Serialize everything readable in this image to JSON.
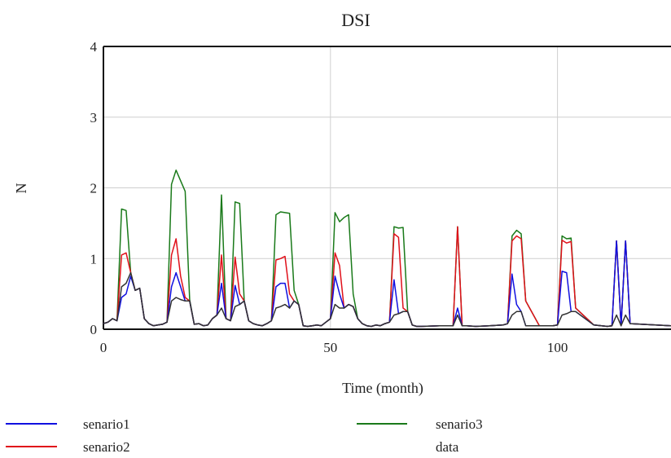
{
  "chart_data": {
    "type": "line",
    "title": "DSI",
    "xlabel": "Time (month)",
    "ylabel": "N",
    "xlim": [
      0,
      125
    ],
    "ylim": [
      0,
      4
    ],
    "x_ticks": [
      0,
      50,
      100
    ],
    "y_ticks": [
      0,
      1,
      2,
      3,
      4
    ],
    "x_tick_labels": [
      "0",
      "50",
      "100"
    ],
    "y_tick_labels": [
      "0",
      "1",
      "2",
      "3",
      "4"
    ],
    "grid": true,
    "legend_position": "bottom",
    "series": [
      {
        "name": "senario3",
        "color": "#1a7a1a",
        "x": [
          0,
          1,
          2,
          3,
          4,
          5,
          6,
          7,
          8,
          9,
          10,
          11,
          12,
          13,
          14,
          15,
          16,
          17,
          18,
          19,
          20,
          21,
          22,
          23,
          24,
          25,
          26,
          27,
          28,
          29,
          30,
          31,
          32,
          33,
          34,
          35,
          36,
          37,
          38,
          39,
          40,
          41,
          42,
          43,
          44,
          45,
          46,
          47,
          48,
          49,
          50,
          51,
          52,
          53,
          54,
          55,
          56,
          57,
          58,
          59,
          60,
          61,
          62,
          63,
          64,
          65,
          66,
          67,
          68,
          69,
          70,
          74,
          76,
          77,
          78,
          79,
          80,
          82,
          85,
          88,
          89,
          90,
          91,
          92,
          93,
          96,
          99,
          100,
          101,
          102,
          103,
          104,
          108,
          111,
          112,
          113,
          114,
          115,
          116,
          125
        ],
        "y": [
          0.08,
          0.1,
          0.15,
          0.12,
          1.7,
          1.68,
          0.8,
          0.55,
          0.58,
          0.15,
          0.08,
          0.05,
          0.06,
          0.07,
          0.1,
          2.05,
          2.25,
          2.1,
          1.95,
          0.42,
          0.07,
          0.08,
          0.05,
          0.06,
          0.15,
          0.2,
          1.9,
          0.15,
          0.12,
          1.8,
          1.78,
          0.4,
          0.12,
          0.08,
          0.06,
          0.05,
          0.08,
          0.12,
          1.62,
          1.66,
          1.65,
          1.64,
          0.55,
          0.35,
          0.05,
          0.04,
          0.05,
          0.06,
          0.05,
          0.1,
          0.15,
          1.65,
          1.52,
          1.58,
          1.62,
          0.5,
          0.15,
          0.08,
          0.05,
          0.04,
          0.06,
          0.05,
          0.08,
          0.1,
          1.45,
          1.43,
          1.44,
          0.25,
          0.06,
          0.04,
          0.04,
          0.05,
          0.05,
          0.05,
          1.45,
          0.05,
          0.05,
          0.04,
          0.05,
          0.06,
          0.08,
          1.32,
          1.4,
          1.35,
          0.4,
          0.05,
          0.05,
          0.06,
          1.32,
          1.28,
          1.29,
          0.3,
          0.06,
          0.04,
          0.05,
          1.25,
          0.05,
          1.25,
          0.08,
          0.05
        ]
      },
      {
        "name": "senario2",
        "color": "#e0101a",
        "x": [
          0,
          1,
          2,
          3,
          4,
          5,
          6,
          7,
          8,
          9,
          10,
          11,
          12,
          13,
          14,
          15,
          16,
          17,
          18,
          19,
          20,
          21,
          22,
          23,
          24,
          25,
          26,
          27,
          28,
          29,
          30,
          31,
          32,
          33,
          34,
          35,
          36,
          37,
          38,
          39,
          40,
          41,
          42,
          43,
          44,
          45,
          46,
          47,
          48,
          49,
          50,
          51,
          52,
          53,
          54,
          55,
          56,
          57,
          58,
          59,
          60,
          61,
          62,
          63,
          64,
          65,
          66,
          67,
          68,
          69,
          70,
          74,
          76,
          77,
          78,
          79,
          80,
          82,
          85,
          88,
          89,
          90,
          91,
          92,
          93,
          96,
          99,
          100,
          101,
          102,
          103,
          104,
          108,
          111,
          112,
          113,
          114,
          115,
          116,
          125
        ],
        "y": [
          0.08,
          0.1,
          0.15,
          0.12,
          1.05,
          1.08,
          0.8,
          0.55,
          0.58,
          0.15,
          0.08,
          0.05,
          0.06,
          0.07,
          0.1,
          1.05,
          1.28,
          0.75,
          0.45,
          0.4,
          0.07,
          0.08,
          0.05,
          0.06,
          0.15,
          0.2,
          1.05,
          0.15,
          0.12,
          1.02,
          0.5,
          0.4,
          0.12,
          0.08,
          0.06,
          0.05,
          0.08,
          0.12,
          0.98,
          1.0,
          1.03,
          0.5,
          0.4,
          0.35,
          0.05,
          0.04,
          0.05,
          0.06,
          0.05,
          0.1,
          0.15,
          1.08,
          0.9,
          0.3,
          0.35,
          0.32,
          0.15,
          0.08,
          0.05,
          0.04,
          0.06,
          0.05,
          0.08,
          0.1,
          1.35,
          1.3,
          0.3,
          0.25,
          0.06,
          0.04,
          0.04,
          0.05,
          0.05,
          0.05,
          1.45,
          0.05,
          0.05,
          0.04,
          0.05,
          0.06,
          0.08,
          1.25,
          1.32,
          1.28,
          0.4,
          0.05,
          0.05,
          0.06,
          1.26,
          1.22,
          1.24,
          0.3,
          0.06,
          0.04,
          0.05,
          1.25,
          0.05,
          1.25,
          0.08,
          0.05
        ]
      },
      {
        "name": "senario1",
        "color": "#1010e0",
        "x": [
          0,
          1,
          2,
          3,
          4,
          5,
          6,
          7,
          8,
          9,
          10,
          11,
          12,
          13,
          14,
          15,
          16,
          17,
          18,
          19,
          20,
          21,
          22,
          23,
          24,
          25,
          26,
          27,
          28,
          29,
          30,
          31,
          32,
          33,
          34,
          35,
          36,
          37,
          38,
          39,
          40,
          41,
          42,
          43,
          44,
          45,
          46,
          47,
          48,
          49,
          50,
          51,
          52,
          53,
          54,
          55,
          56,
          57,
          58,
          59,
          60,
          61,
          62,
          63,
          64,
          65,
          66,
          67,
          68,
          69,
          70,
          74,
          76,
          77,
          78,
          79,
          80,
          82,
          85,
          88,
          89,
          90,
          91,
          92,
          93,
          96,
          99,
          100,
          101,
          102,
          103,
          104,
          108,
          111,
          112,
          113,
          114,
          115,
          116,
          125
        ],
        "y": [
          0.08,
          0.1,
          0.15,
          0.12,
          0.45,
          0.5,
          0.75,
          0.55,
          0.58,
          0.15,
          0.08,
          0.05,
          0.06,
          0.07,
          0.1,
          0.6,
          0.8,
          0.6,
          0.4,
          0.4,
          0.07,
          0.08,
          0.05,
          0.06,
          0.15,
          0.2,
          0.65,
          0.15,
          0.12,
          0.62,
          0.35,
          0.4,
          0.12,
          0.08,
          0.06,
          0.05,
          0.08,
          0.12,
          0.6,
          0.65,
          0.65,
          0.3,
          0.4,
          0.35,
          0.05,
          0.04,
          0.05,
          0.06,
          0.05,
          0.1,
          0.15,
          0.75,
          0.5,
          0.3,
          0.35,
          0.32,
          0.15,
          0.08,
          0.05,
          0.04,
          0.06,
          0.05,
          0.08,
          0.1,
          0.7,
          0.22,
          0.25,
          0.25,
          0.06,
          0.04,
          0.04,
          0.05,
          0.05,
          0.05,
          0.3,
          0.05,
          0.05,
          0.04,
          0.05,
          0.06,
          0.08,
          0.78,
          0.35,
          0.25,
          0.05,
          0.05,
          0.05,
          0.06,
          0.82,
          0.8,
          0.25,
          0.25,
          0.06,
          0.04,
          0.05,
          1.25,
          0.05,
          1.25,
          0.08,
          0.05
        ]
      },
      {
        "name": "data",
        "color": "#333333",
        "x": [
          0,
          1,
          2,
          3,
          4,
          5,
          6,
          7,
          8,
          9,
          10,
          11,
          12,
          13,
          14,
          15,
          16,
          17,
          18,
          19,
          20,
          21,
          22,
          23,
          24,
          25,
          26,
          27,
          28,
          29,
          30,
          31,
          32,
          33,
          34,
          35,
          36,
          37,
          38,
          39,
          40,
          41,
          42,
          43,
          44,
          45,
          46,
          47,
          48,
          49,
          50,
          51,
          52,
          53,
          54,
          55,
          56,
          57,
          58,
          59,
          60,
          61,
          62,
          63,
          64,
          65,
          66,
          67,
          68,
          69,
          70,
          74,
          76,
          77,
          78,
          79,
          80,
          82,
          85,
          88,
          89,
          90,
          91,
          92,
          93,
          96,
          99,
          100,
          101,
          102,
          103,
          104,
          108,
          111,
          112,
          113,
          114,
          115,
          116,
          125
        ],
        "y": [
          0.08,
          0.1,
          0.15,
          0.12,
          0.6,
          0.65,
          0.8,
          0.55,
          0.58,
          0.15,
          0.08,
          0.05,
          0.06,
          0.07,
          0.1,
          0.4,
          0.45,
          0.42,
          0.4,
          0.4,
          0.07,
          0.08,
          0.05,
          0.06,
          0.15,
          0.2,
          0.3,
          0.15,
          0.12,
          0.32,
          0.35,
          0.4,
          0.12,
          0.08,
          0.06,
          0.05,
          0.08,
          0.12,
          0.3,
          0.32,
          0.35,
          0.3,
          0.4,
          0.35,
          0.05,
          0.04,
          0.05,
          0.06,
          0.05,
          0.1,
          0.15,
          0.35,
          0.3,
          0.3,
          0.35,
          0.32,
          0.15,
          0.08,
          0.05,
          0.04,
          0.06,
          0.05,
          0.08,
          0.1,
          0.2,
          0.22,
          0.25,
          0.25,
          0.06,
          0.04,
          0.04,
          0.05,
          0.05,
          0.05,
          0.2,
          0.05,
          0.05,
          0.04,
          0.05,
          0.06,
          0.08,
          0.2,
          0.25,
          0.25,
          0.05,
          0.05,
          0.05,
          0.06,
          0.2,
          0.22,
          0.25,
          0.25,
          0.06,
          0.04,
          0.05,
          0.2,
          0.05,
          0.2,
          0.08,
          0.05
        ]
      }
    ],
    "legend": [
      {
        "name": "senario1",
        "color": "#1010e0"
      },
      {
        "name": "senario2",
        "color": "#e0101a"
      },
      {
        "name": "senario3",
        "color": "#1a7a1a"
      },
      {
        "name": "data",
        "color": ""
      }
    ]
  }
}
